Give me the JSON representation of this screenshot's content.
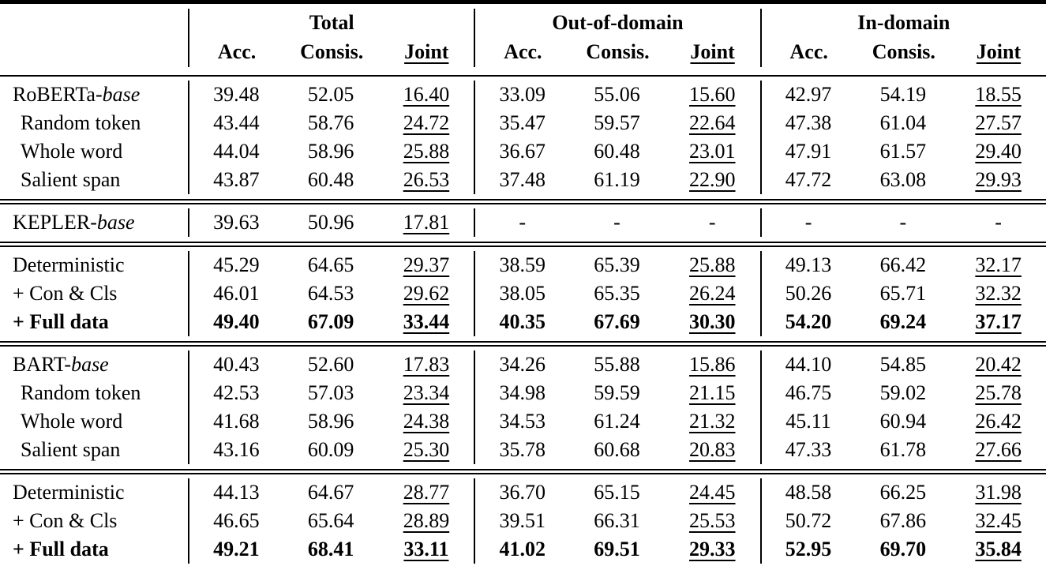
{
  "header": {
    "groups": [
      {
        "label": "Total"
      },
      {
        "label": "Out-of-domain"
      },
      {
        "label": "In-domain"
      }
    ],
    "subcolumns": [
      "Acc.",
      "Consis.",
      "Joint"
    ]
  },
  "table": {
    "underline_columns": [
      2,
      5,
      8
    ],
    "sections": [
      {
        "rows": [
          {
            "label_prefix": "RoBERTa-",
            "label_italic": "base",
            "indent": false,
            "bold": false,
            "values": [
              "39.48",
              "52.05",
              "16.40",
              "33.09",
              "55.06",
              "15.60",
              "42.97",
              "54.19",
              "18.55"
            ]
          },
          {
            "label_prefix": "Random token",
            "label_italic": "",
            "indent": true,
            "bold": false,
            "values": [
              "43.44",
              "58.76",
              "24.72",
              "35.47",
              "59.57",
              "22.64",
              "47.38",
              "61.04",
              "27.57"
            ]
          },
          {
            "label_prefix": "Whole word",
            "label_italic": "",
            "indent": true,
            "bold": false,
            "values": [
              "44.04",
              "58.96",
              "25.88",
              "36.67",
              "60.48",
              "23.01",
              "47.91",
              "61.57",
              "29.40"
            ]
          },
          {
            "label_prefix": "Salient span",
            "label_italic": "",
            "indent": true,
            "bold": false,
            "values": [
              "43.87",
              "60.48",
              "26.53",
              "37.48",
              "61.19",
              "22.90",
              "47.72",
              "63.08",
              "29.93"
            ]
          }
        ]
      },
      {
        "rows": [
          {
            "label_prefix": "KEPLER-",
            "label_italic": "base",
            "indent": false,
            "bold": false,
            "values": [
              "39.63",
              "50.96",
              "17.81",
              "-",
              "-",
              "-",
              "-",
              "-",
              "-"
            ]
          }
        ]
      },
      {
        "rows": [
          {
            "label_prefix": "Deterministic",
            "label_italic": "",
            "indent": false,
            "bold": false,
            "values": [
              "45.29",
              "64.65",
              "29.37",
              "38.59",
              "65.39",
              "25.88",
              "49.13",
              "66.42",
              "32.17"
            ]
          },
          {
            "label_prefix": "+ Con & Cls",
            "label_italic": "",
            "indent": false,
            "bold": false,
            "values": [
              "46.01",
              "64.53",
              "29.62",
              "38.05",
              "65.35",
              "26.24",
              "50.26",
              "65.71",
              "32.32"
            ]
          },
          {
            "label_prefix": "+ Full data",
            "label_italic": "",
            "indent": false,
            "bold": true,
            "values": [
              "49.40",
              "67.09",
              "33.44",
              "40.35",
              "67.69",
              "30.30",
              "54.20",
              "69.24",
              "37.17"
            ]
          }
        ]
      },
      {
        "rows": [
          {
            "label_prefix": "BART-",
            "label_italic": "base",
            "indent": false,
            "bold": false,
            "values": [
              "40.43",
              "52.60",
              "17.83",
              "34.26",
              "55.88",
              "15.86",
              "44.10",
              "54.85",
              "20.42"
            ]
          },
          {
            "label_prefix": "Random token",
            "label_italic": "",
            "indent": true,
            "bold": false,
            "values": [
              "42.53",
              "57.03",
              "23.34",
              "34.98",
              "59.59",
              "21.15",
              "46.75",
              "59.02",
              "25.78"
            ]
          },
          {
            "label_prefix": "Whole word",
            "label_italic": "",
            "indent": true,
            "bold": false,
            "values": [
              "41.68",
              "58.96",
              "24.38",
              "34.53",
              "61.24",
              "21.32",
              "45.11",
              "60.94",
              "26.42"
            ]
          },
          {
            "label_prefix": "Salient span",
            "label_italic": "",
            "indent": true,
            "bold": false,
            "values": [
              "43.16",
              "60.09",
              "25.30",
              "35.78",
              "60.68",
              "20.83",
              "47.33",
              "61.78",
              "27.66"
            ]
          }
        ]
      },
      {
        "rows": [
          {
            "label_prefix": "Deterministic",
            "label_italic": "",
            "indent": false,
            "bold": false,
            "values": [
              "44.13",
              "64.67",
              "28.77",
              "36.70",
              "65.15",
              "24.45",
              "48.58",
              "66.25",
              "31.98"
            ]
          },
          {
            "label_prefix": "+ Con & Cls",
            "label_italic": "",
            "indent": false,
            "bold": false,
            "values": [
              "46.65",
              "65.64",
              "28.89",
              "39.51",
              "66.31",
              "25.53",
              "50.72",
              "67.86",
              "32.45"
            ]
          },
          {
            "label_prefix": "+ Full data",
            "label_italic": "",
            "indent": false,
            "bold": true,
            "values": [
              "49.21",
              "68.41",
              "33.11",
              "41.02",
              "69.51",
              "29.33",
              "52.95",
              "69.70",
              "35.84"
            ]
          }
        ]
      }
    ]
  }
}
